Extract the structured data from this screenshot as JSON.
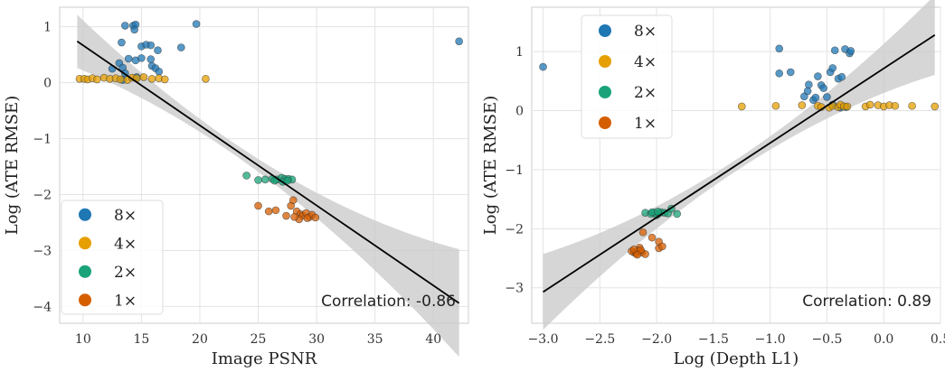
{
  "colors": {
    "8x": "#1f77b4",
    "4x": "#e69f00",
    "2x": "#1aa37a",
    "1x": "#d55e00",
    "fit": "#000000",
    "band": "#c8c8c8",
    "grid": "#e3e3e3",
    "frame": "#cccccc"
  },
  "chart_data": [
    {
      "type": "scatter",
      "xlabel": "Image PSNR",
      "ylabel": "Log (ATE RMSE)",
      "xlim": [
        8,
        43
      ],
      "ylim": [
        -4.3,
        1.35
      ],
      "xticks": [
        10,
        15,
        20,
        25,
        30,
        35,
        40
      ],
      "xtick_labels": [
        "10",
        "15",
        "20",
        "25",
        "30",
        "35",
        "40"
      ],
      "yticks": [
        -4,
        -3,
        -2,
        -1,
        0,
        1
      ],
      "ytick_labels": [
        "−4",
        "−3",
        "−2",
        "−1",
        "0",
        "1"
      ],
      "grid": true,
      "legend": {
        "position": "lower-left",
        "entries": [
          "8×",
          "4×",
          "2×",
          "1×"
        ]
      },
      "annotation": "Correlation: -0.86",
      "fit_line": {
        "x": [
          9.5,
          42.2
        ],
        "y": [
          0.74,
          -3.94
        ]
      },
      "series": [
        {
          "name": "8×",
          "color_key": "8x",
          "points": [
            [
              13.6,
              1.02
            ],
            [
              14.3,
              1.02
            ],
            [
              14.5,
              1.04
            ],
            [
              19.7,
              1.05
            ],
            [
              42.2,
              0.74
            ],
            [
              13.3,
              0.72
            ],
            [
              14.4,
              0.95
            ],
            [
              15,
              0.65
            ],
            [
              15.4,
              0.68
            ],
            [
              15.8,
              0.67
            ],
            [
              16.4,
              0.58
            ],
            [
              18.4,
              0.63
            ],
            [
              13.9,
              0.43
            ],
            [
              14.5,
              0.4
            ],
            [
              15,
              0.44
            ],
            [
              15.8,
              0.42
            ],
            [
              13.1,
              0.35
            ],
            [
              13.4,
              0.27
            ],
            [
              15.9,
              0.3
            ],
            [
              16.2,
              0.26
            ],
            [
              12.5,
              0.25
            ],
            [
              13.6,
              0.17
            ],
            [
              14.6,
              0.1
            ],
            [
              13.4,
              0.05
            ],
            [
              16.5,
              0.2
            ]
          ]
        },
        {
          "name": "4×",
          "color_key": "4x",
          "points": [
            [
              9.7,
              0.07
            ],
            [
              10.1,
              0.07
            ],
            [
              10.4,
              0.06
            ],
            [
              10.8,
              0.08
            ],
            [
              11.2,
              0.06
            ],
            [
              11.8,
              0.09
            ],
            [
              12.3,
              0.07
            ],
            [
              12.8,
              0.08
            ],
            [
              13.2,
              0.06
            ],
            [
              13.8,
              0.05
            ],
            [
              14.2,
              0.09
            ],
            [
              14.6,
              0.08
            ],
            [
              15.2,
              0.1
            ],
            [
              15.9,
              0.07
            ],
            [
              16.5,
              0.08
            ],
            [
              17.0,
              0.06
            ],
            [
              20.5,
              0.07
            ]
          ]
        },
        {
          "name": "2×",
          "color_key": "2x",
          "points": [
            [
              24,
              -1.66
            ],
            [
              25,
              -1.74
            ],
            [
              25.6,
              -1.73
            ],
            [
              26.2,
              -1.72
            ],
            [
              26.6,
              -1.73
            ],
            [
              27,
              -1.7
            ],
            [
              27.3,
              -1.72
            ],
            [
              27.6,
              -1.72
            ],
            [
              27.9,
              -1.73
            ],
            [
              26.4,
              -1.75
            ],
            [
              27.1,
              -1.77
            ],
            [
              27.5,
              -1.75
            ]
          ]
        },
        {
          "name": "1×",
          "color_key": "1x",
          "points": [
            [
              25,
              -2.2
            ],
            [
              25.9,
              -2.3
            ],
            [
              26.5,
              -2.28
            ],
            [
              27.4,
              -2.38
            ],
            [
              27.8,
              -2.2
            ],
            [
              28,
              -2.1
            ],
            [
              28.3,
              -2.3
            ],
            [
              28.6,
              -2.35
            ],
            [
              28.8,
              -2.38
            ],
            [
              29.1,
              -2.33
            ],
            [
              29.4,
              -2.4
            ],
            [
              29.6,
              -2.36
            ],
            [
              29.9,
              -2.41
            ],
            [
              28.5,
              -2.44
            ],
            [
              29.2,
              -2.42
            ],
            [
              28.1,
              -2.4
            ]
          ]
        }
      ]
    },
    {
      "type": "scatter",
      "xlabel": "Log (Depth L1)",
      "ylabel": "Log (ATE RMSE)",
      "xlim": [
        -3.1,
        0.5
      ],
      "ylim": [
        -3.6,
        1.75
      ],
      "xticks": [
        -3.0,
        -2.5,
        -2.0,
        -1.5,
        -1.0,
        -0.5,
        0.0,
        0.5
      ],
      "xtick_labels": [
        "−3.0",
        "−2.5",
        "−2.0",
        "−1.5",
        "−1.0",
        "−0.5",
        "0.0",
        "0.5"
      ],
      "yticks": [
        -3,
        -2,
        -1,
        0,
        1
      ],
      "ytick_labels": [
        "−3",
        "−2",
        "−1",
        "0",
        "1"
      ],
      "grid": true,
      "legend": {
        "position": "top-left",
        "entries": [
          "8×",
          "4×",
          "2×",
          "1×"
        ]
      },
      "annotation": "Correlation: 0.89",
      "fit_line": {
        "x": [
          -3.0,
          0.45
        ],
        "y": [
          -3.07,
          1.28
        ]
      },
      "series": [
        {
          "name": "8×",
          "color_key": "8x",
          "points": [
            [
              -3.0,
              0.74
            ],
            [
              -0.92,
              1.05
            ],
            [
              -0.92,
              0.63
            ],
            [
              -0.82,
              0.65
            ],
            [
              -0.7,
              0.24
            ],
            [
              -0.67,
              0.33
            ],
            [
              -0.66,
              0.44
            ],
            [
              -0.62,
              0.18
            ],
            [
              -0.58,
              0.58
            ],
            [
              -0.55,
              0.43
            ],
            [
              -0.53,
              0.38
            ],
            [
              -0.5,
              0.23
            ],
            [
              -0.47,
              0.65
            ],
            [
              -0.45,
              0.72
            ],
            [
              -0.43,
              1.02
            ],
            [
              -0.4,
              0.54
            ],
            [
              -0.37,
              0.57
            ],
            [
              -0.34,
              1.04
            ],
            [
              -0.3,
              0.97
            ],
            [
              -0.29,
              1.01
            ],
            [
              -0.45,
              0.1
            ],
            [
              -0.38,
              0.05
            ],
            [
              -0.33,
              0.06
            ],
            [
              -0.6,
              0.22
            ]
          ]
        },
        {
          "name": "4×",
          "color_key": "4x",
          "points": [
            [
              -1.25,
              0.07
            ],
            [
              -0.95,
              0.08
            ],
            [
              -0.72,
              0.09
            ],
            [
              -0.58,
              0.08
            ],
            [
              -0.55,
              0.06
            ],
            [
              -0.48,
              0.05
            ],
            [
              -0.45,
              0.08
            ],
            [
              -0.4,
              0.06
            ],
            [
              -0.38,
              0.1
            ],
            [
              -0.35,
              0.07
            ],
            [
              -0.32,
              0.07
            ],
            [
              -0.16,
              0.07
            ],
            [
              -0.12,
              0.1
            ],
            [
              -0.05,
              0.09
            ],
            [
              0.0,
              0.07
            ],
            [
              0.05,
              0.09
            ],
            [
              0.1,
              0.08
            ],
            [
              0.25,
              0.08
            ],
            [
              0.45,
              0.07
            ]
          ]
        },
        {
          "name": "2×",
          "color_key": "2x",
          "points": [
            [
              -2.1,
              -1.73
            ],
            [
              -2.05,
              -1.75
            ],
            [
              -2.02,
              -1.73
            ],
            [
              -2.0,
              -1.77
            ],
            [
              -1.98,
              -1.74
            ],
            [
              -1.96,
              -1.72
            ],
            [
              -1.93,
              -1.73
            ],
            [
              -1.9,
              -1.74
            ],
            [
              -1.87,
              -1.66
            ],
            [
              -1.82,
              -1.75
            ],
            [
              -2.04,
              -1.72
            ],
            [
              -1.99,
              -1.71
            ]
          ]
        },
        {
          "name": "1×",
          "color_key": "1x",
          "points": [
            [
              -2.12,
              -2.06
            ],
            [
              -2.15,
              -2.32
            ],
            [
              -2.2,
              -2.4
            ],
            [
              -2.22,
              -2.38
            ],
            [
              -2.18,
              -2.42
            ],
            [
              -2.16,
              -2.37
            ],
            [
              -2.13,
              -2.4
            ],
            [
              -2.1,
              -2.43
            ],
            [
              -2.14,
              -2.36
            ],
            [
              -2.2,
              -2.35
            ],
            [
              -2.04,
              -2.15
            ],
            [
              -1.98,
              -2.22
            ],
            [
              -1.98,
              -2.33
            ],
            [
              -1.95,
              -2.3
            ],
            [
              -2.17,
              -2.44
            ]
          ]
        }
      ]
    }
  ]
}
